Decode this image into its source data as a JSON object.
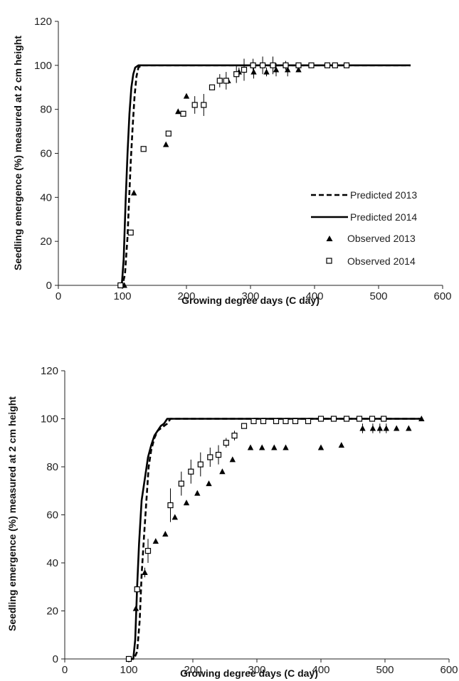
{
  "chart_data": [
    {
      "type": "line",
      "xlabel": "Growing degree days (C day)",
      "ylabel": "Seedling emergence (%) measured at 2 cm height",
      "xlim": [
        0,
        600
      ],
      "ylim": [
        0,
        120
      ],
      "xticks": [
        0,
        100,
        200,
        300,
        400,
        500,
        600
      ],
      "yticks": [
        0,
        20,
        40,
        60,
        80,
        100,
        120
      ],
      "grid": false,
      "legend": "bottom-right",
      "series": [
        {
          "name": "Predicted 2013",
          "kind": "line",
          "dash": "dashed",
          "x": [
            95,
            100,
            104,
            108,
            110,
            113,
            116,
            119,
            122,
            125,
            130,
            140,
            160,
            200,
            300,
            400,
            550
          ],
          "y": [
            0,
            0,
            5,
            22,
            36,
            56,
            72,
            86,
            95,
            99,
            100,
            100,
            100,
            100,
            100,
            100,
            100
          ]
        },
        {
          "name": "Predicted 2014",
          "kind": "line",
          "dash": "solid",
          "x": [
            95,
            99,
            102,
            105,
            108,
            111,
            114,
            117,
            120,
            125,
            130,
            140,
            160,
            200,
            300,
            400,
            550
          ],
          "y": [
            0,
            0,
            12,
            38,
            60,
            78,
            90,
            96,
            99,
            100,
            100,
            100,
            100,
            100,
            100,
            100,
            100
          ]
        },
        {
          "name": "Observed 2013",
          "kind": "marker",
          "marker": "triangle",
          "x": [
            103,
            118,
            168,
            187,
            200,
            265,
            282,
            305,
            325,
            340,
            358,
            375
          ],
          "y": [
            0,
            42,
            64,
            79,
            86,
            93,
            97,
            97,
            97,
            98,
            98,
            98
          ],
          "err": [
            0,
            0,
            0,
            0,
            0,
            0,
            2,
            3,
            2,
            3,
            3,
            0
          ]
        },
        {
          "name": "Observed 2014",
          "kind": "marker",
          "marker": "square",
          "x": [
            97,
            113,
            133,
            172,
            195,
            213,
            227,
            240,
            252,
            262,
            278,
            290,
            304,
            319,
            335,
            355,
            375,
            395,
            420,
            432,
            450
          ],
          "y": [
            0,
            24,
            62,
            69,
            78,
            82,
            82,
            90,
            93,
            93,
            96,
            98,
            100,
            100,
            100,
            100,
            100,
            100,
            100,
            100,
            100
          ],
          "err": [
            0,
            0,
            0,
            0,
            0,
            4,
            5,
            0,
            3,
            4,
            4,
            5,
            3,
            4,
            4,
            2,
            0,
            0,
            0,
            0,
            0
          ]
        }
      ]
    },
    {
      "type": "line",
      "xlabel": "Growing degree days (C day)",
      "ylabel": "Seedling emergence (%) measured at 2 cm height",
      "xlim": [
        0,
        600
      ],
      "ylim": [
        0,
        120
      ],
      "xticks": [
        0,
        100,
        200,
        300,
        400,
        500,
        600
      ],
      "yticks": [
        0,
        20,
        40,
        60,
        80,
        100,
        120
      ],
      "grid": false,
      "legend": "none",
      "series": [
        {
          "name": "Predicted 2013",
          "kind": "line",
          "dash": "dashed",
          "x": [
            100,
            108,
            113,
            117,
            120,
            124,
            128,
            131,
            135,
            140,
            145,
            150,
            155,
            160,
            165,
            200,
            300,
            400,
            500,
            557
          ],
          "y": [
            0,
            0,
            3,
            16,
            35,
            52,
            68,
            80,
            87,
            92,
            95,
            96,
            97,
            98,
            100,
            100,
            100,
            100,
            100,
            100
          ]
        },
        {
          "name": "Predicted 2014",
          "kind": "line",
          "dash": "solid",
          "x": [
            100,
            107,
            110,
            113,
            116,
            120,
            125,
            130,
            135,
            140,
            145,
            150,
            155,
            160,
            200,
            300,
            400,
            500,
            557
          ],
          "y": [
            0,
            0,
            8,
            30,
            48,
            66,
            75,
            84,
            89,
            93,
            95,
            97,
            98,
            100,
            100,
            100,
            100,
            100,
            100
          ]
        },
        {
          "name": "Observed 2013",
          "kind": "marker",
          "marker": "triangle",
          "x": [
            100,
            111,
            125,
            142,
            157,
            172,
            190,
            207,
            225,
            246,
            262,
            290,
            308,
            327,
            345,
            400,
            432,
            465,
            481,
            492,
            502,
            518,
            537,
            557
          ],
          "y": [
            0,
            21,
            36,
            49,
            52,
            59,
            65,
            69,
            73,
            78,
            83,
            88,
            88,
            88,
            88,
            88,
            89,
            96,
            96,
            96,
            96,
            96,
            96,
            100
          ],
          "err": [
            0,
            0,
            2,
            0,
            0,
            0,
            0,
            0,
            0,
            0,
            0,
            0,
            0,
            0,
            0,
            0,
            0,
            2,
            2,
            2,
            2,
            0,
            0,
            0
          ]
        },
        {
          "name": "Observed 2014",
          "kind": "marker",
          "marker": "square",
          "x": [
            100,
            113,
            130,
            165,
            182,
            197,
            212,
            227,
            240,
            252,
            265,
            280,
            295,
            310,
            330,
            345,
            360,
            380,
            400,
            420,
            440,
            460,
            480,
            498
          ],
          "y": [
            0,
            29,
            45,
            64,
            73,
            78,
            81,
            84,
            85,
            90,
            93,
            97,
            99,
            99,
            99,
            99,
            99,
            99,
            100,
            100,
            100,
            100,
            100,
            100
          ],
          "err": [
            0,
            3,
            5,
            7,
            5,
            5,
            5,
            4,
            4,
            2,
            2,
            0,
            0,
            0,
            0,
            0,
            0,
            0,
            0,
            0,
            0,
            0,
            0,
            0
          ]
        }
      ]
    }
  ]
}
